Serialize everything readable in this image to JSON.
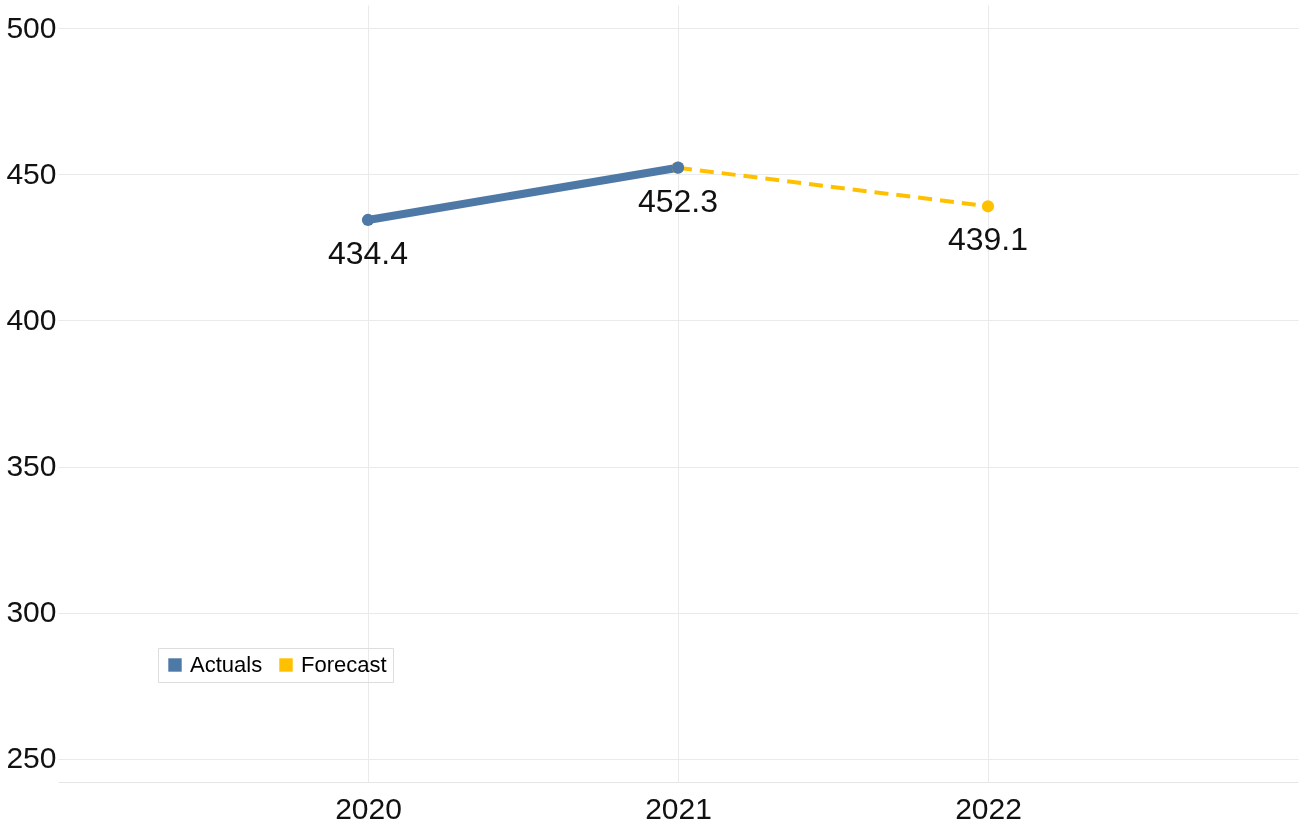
{
  "chart_data": {
    "type": "line",
    "categories": [
      "2020",
      "2021",
      "2022"
    ],
    "series": [
      {
        "name": "Actuals",
        "color": "#4e79a7",
        "values": [
          434.4,
          452.3,
          null
        ],
        "line_style": "solid",
        "value_labels": [
          "434.4",
          "452.3",
          null
        ]
      },
      {
        "name": "Forecast",
        "color": "#ffc000",
        "values": [
          null,
          452.3,
          439.1
        ],
        "line_style": "dashed",
        "value_labels": [
          null,
          null,
          "439.1"
        ]
      }
    ],
    "ylim": [
      242,
      508
    ],
    "yticks": [
      250,
      300,
      350,
      400,
      450,
      500
    ],
    "grid": true,
    "legend": "bottom left",
    "marker": "circle"
  }
}
